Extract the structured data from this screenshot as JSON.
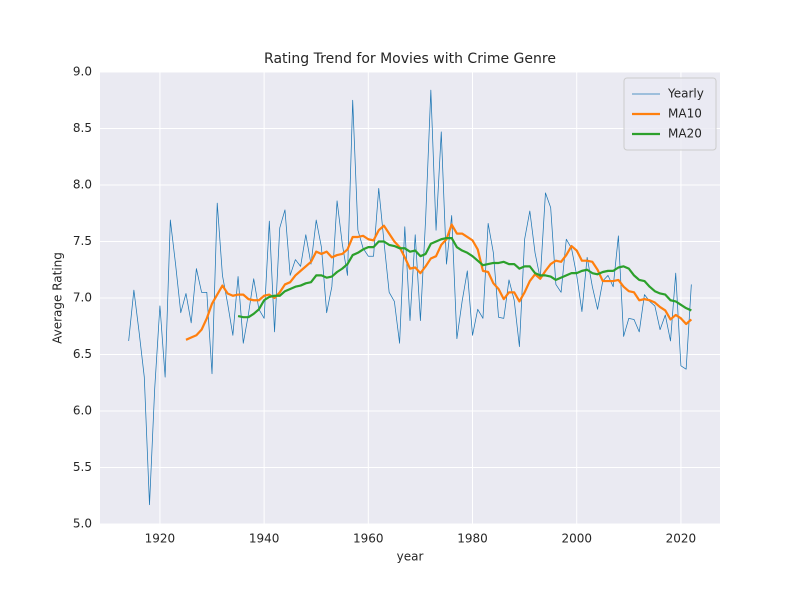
{
  "chart_data": {
    "type": "line",
    "title": "Rating Trend for Movies with Crime Genre",
    "xlabel": "year",
    "ylabel": "Average Rating",
    "x": [
      1914,
      1915,
      1916,
      1917,
      1918,
      1919,
      1920,
      1921,
      1922,
      1923,
      1924,
      1925,
      1926,
      1927,
      1928,
      1929,
      1930,
      1931,
      1932,
      1933,
      1934,
      1935,
      1936,
      1937,
      1938,
      1939,
      1940,
      1941,
      1942,
      1943,
      1944,
      1945,
      1946,
      1947,
      1948,
      1949,
      1950,
      1951,
      1952,
      1953,
      1954,
      1955,
      1956,
      1957,
      1958,
      1959,
      1960,
      1961,
      1962,
      1963,
      1964,
      1965,
      1966,
      1967,
      1968,
      1969,
      1970,
      1971,
      1972,
      1973,
      1974,
      1975,
      1976,
      1977,
      1978,
      1979,
      1980,
      1981,
      1982,
      1983,
      1984,
      1985,
      1986,
      1987,
      1988,
      1989,
      1990,
      1991,
      1992,
      1993,
      1994,
      1995,
      1996,
      1997,
      1998,
      1999,
      2000,
      2001,
      2002,
      2003,
      2004,
      2005,
      2006,
      2007,
      2008,
      2009,
      2010,
      2011,
      2012,
      2013,
      2014,
      2015,
      2016,
      2017,
      2018,
      2019,
      2020,
      2021,
      2022
    ],
    "series": [
      {
        "name": "Yearly",
        "color": "#1f77b4",
        "values": [
          6.62,
          7.07,
          6.7,
          6.3,
          5.17,
          6.2,
          6.93,
          6.3,
          7.69,
          7.3,
          6.87,
          7.04,
          6.78,
          7.26,
          7.05,
          7.05,
          6.33,
          7.84,
          7.2,
          6.95,
          6.67,
          7.19,
          6.6,
          6.86,
          7.17,
          6.9,
          6.82,
          7.68,
          6.7,
          7.62,
          7.78,
          7.2,
          7.34,
          7.28,
          7.56,
          7.3,
          7.69,
          7.45,
          6.87,
          7.1,
          7.86,
          7.48,
          7.2,
          8.75,
          7.6,
          7.44,
          7.37,
          7.37,
          7.97,
          7.5,
          7.05,
          6.97,
          6.6,
          7.63,
          6.8,
          7.56,
          6.8,
          7.7,
          8.84,
          7.6,
          8.47,
          7.3,
          7.73,
          6.64,
          6.97,
          7.24,
          6.67,
          6.9,
          6.82,
          7.66,
          7.4,
          6.83,
          6.82,
          7.16,
          6.98,
          6.57,
          7.52,
          7.77,
          7.4,
          7.17,
          7.93,
          7.8,
          7.12,
          7.05,
          7.52,
          7.44,
          7.2,
          6.88,
          7.36,
          7.1,
          6.9,
          7.15,
          7.2,
          7.1,
          7.55,
          6.66,
          6.82,
          6.81,
          6.7,
          7.03,
          6.97,
          6.93,
          6.72,
          6.85,
          6.62,
          7.22,
          6.4,
          6.37,
          7.12
        ]
      },
      {
        "name": "MA10",
        "color": "#ff7f0e",
        "values": [
          null,
          null,
          null,
          null,
          null,
          null,
          null,
          null,
          null,
          null,
          null,
          6.63,
          6.65,
          6.67,
          6.72,
          6.82,
          6.95,
          7.03,
          7.11,
          7.04,
          7.02,
          7.03,
          7.03,
          6.99,
          6.98,
          6.98,
          7.02,
          7.03,
          7.0,
          7.05,
          7.12,
          7.14,
          7.2,
          7.24,
          7.28,
          7.32,
          7.41,
          7.39,
          7.41,
          7.36,
          7.38,
          7.39,
          7.43,
          7.54,
          7.54,
          7.55,
          7.52,
          7.51,
          7.6,
          7.64,
          7.57,
          7.5,
          7.45,
          7.36,
          7.26,
          7.27,
          7.22,
          7.28,
          7.35,
          7.37,
          7.47,
          7.52,
          7.65,
          7.57,
          7.57,
          7.54,
          7.51,
          7.43,
          7.24,
          7.23,
          7.13,
          7.08,
          6.99,
          7.05,
          7.05,
          6.97,
          7.05,
          7.15,
          7.21,
          7.17,
          7.24,
          7.3,
          7.33,
          7.32,
          7.38,
          7.46,
          7.42,
          7.33,
          7.33,
          7.32,
          7.25,
          7.15,
          7.15,
          7.15,
          7.16,
          7.1,
          7.06,
          7.05,
          6.98,
          6.99,
          6.98,
          6.96,
          6.92,
          6.89,
          6.81,
          6.85,
          6.82,
          6.77,
          6.81
        ]
      },
      {
        "name": "MA20",
        "color": "#2ca02c",
        "values": [
          null,
          null,
          null,
          null,
          null,
          null,
          null,
          null,
          null,
          null,
          null,
          null,
          null,
          null,
          null,
          null,
          null,
          null,
          null,
          null,
          null,
          6.84,
          6.83,
          6.83,
          6.86,
          6.9,
          6.98,
          7.01,
          7.02,
          7.02,
          7.06,
          7.08,
          7.1,
          7.11,
          7.13,
          7.14,
          7.2,
          7.2,
          7.18,
          7.19,
          7.23,
          7.26,
          7.3,
          7.38,
          7.4,
          7.43,
          7.45,
          7.45,
          7.5,
          7.5,
          7.47,
          7.46,
          7.44,
          7.44,
          7.41,
          7.42,
          7.37,
          7.39,
          7.48,
          7.5,
          7.52,
          7.53,
          7.53,
          7.45,
          7.42,
          7.4,
          7.37,
          7.33,
          7.29,
          7.3,
          7.31,
          7.31,
          7.32,
          7.3,
          7.3,
          7.26,
          7.28,
          7.28,
          7.22,
          7.2,
          7.2,
          7.19,
          7.16,
          7.18,
          7.2,
          7.22,
          7.22,
          7.24,
          7.25,
          7.22,
          7.21,
          7.23,
          7.24,
          7.24,
          7.27,
          7.28,
          7.26,
          7.2,
          7.16,
          7.15,
          7.1,
          7.06,
          7.04,
          7.03,
          6.98,
          6.97,
          6.94,
          6.91,
          6.89
        ]
      }
    ],
    "xlim": [
      1908.5,
      2027.5
    ],
    "ylim": [
      5.0,
      9.0
    ],
    "xticks": [
      1920,
      1940,
      1960,
      1980,
      2000,
      2020
    ],
    "yticks": [
      {
        "value": 5,
        "label": "5.0"
      },
      {
        "value": 5.5,
        "label": "5.5"
      },
      {
        "value": 6,
        "label": "6.0"
      },
      {
        "value": 6.5,
        "label": "6.5"
      },
      {
        "value": 7,
        "label": "7.0"
      },
      {
        "value": 7.5,
        "label": "7.5"
      },
      {
        "value": 8,
        "label": "8.0"
      },
      {
        "value": 8.5,
        "label": "8.5"
      },
      {
        "value": 9,
        "label": "9.0"
      }
    ],
    "grid": true,
    "legend": "upper right"
  }
}
